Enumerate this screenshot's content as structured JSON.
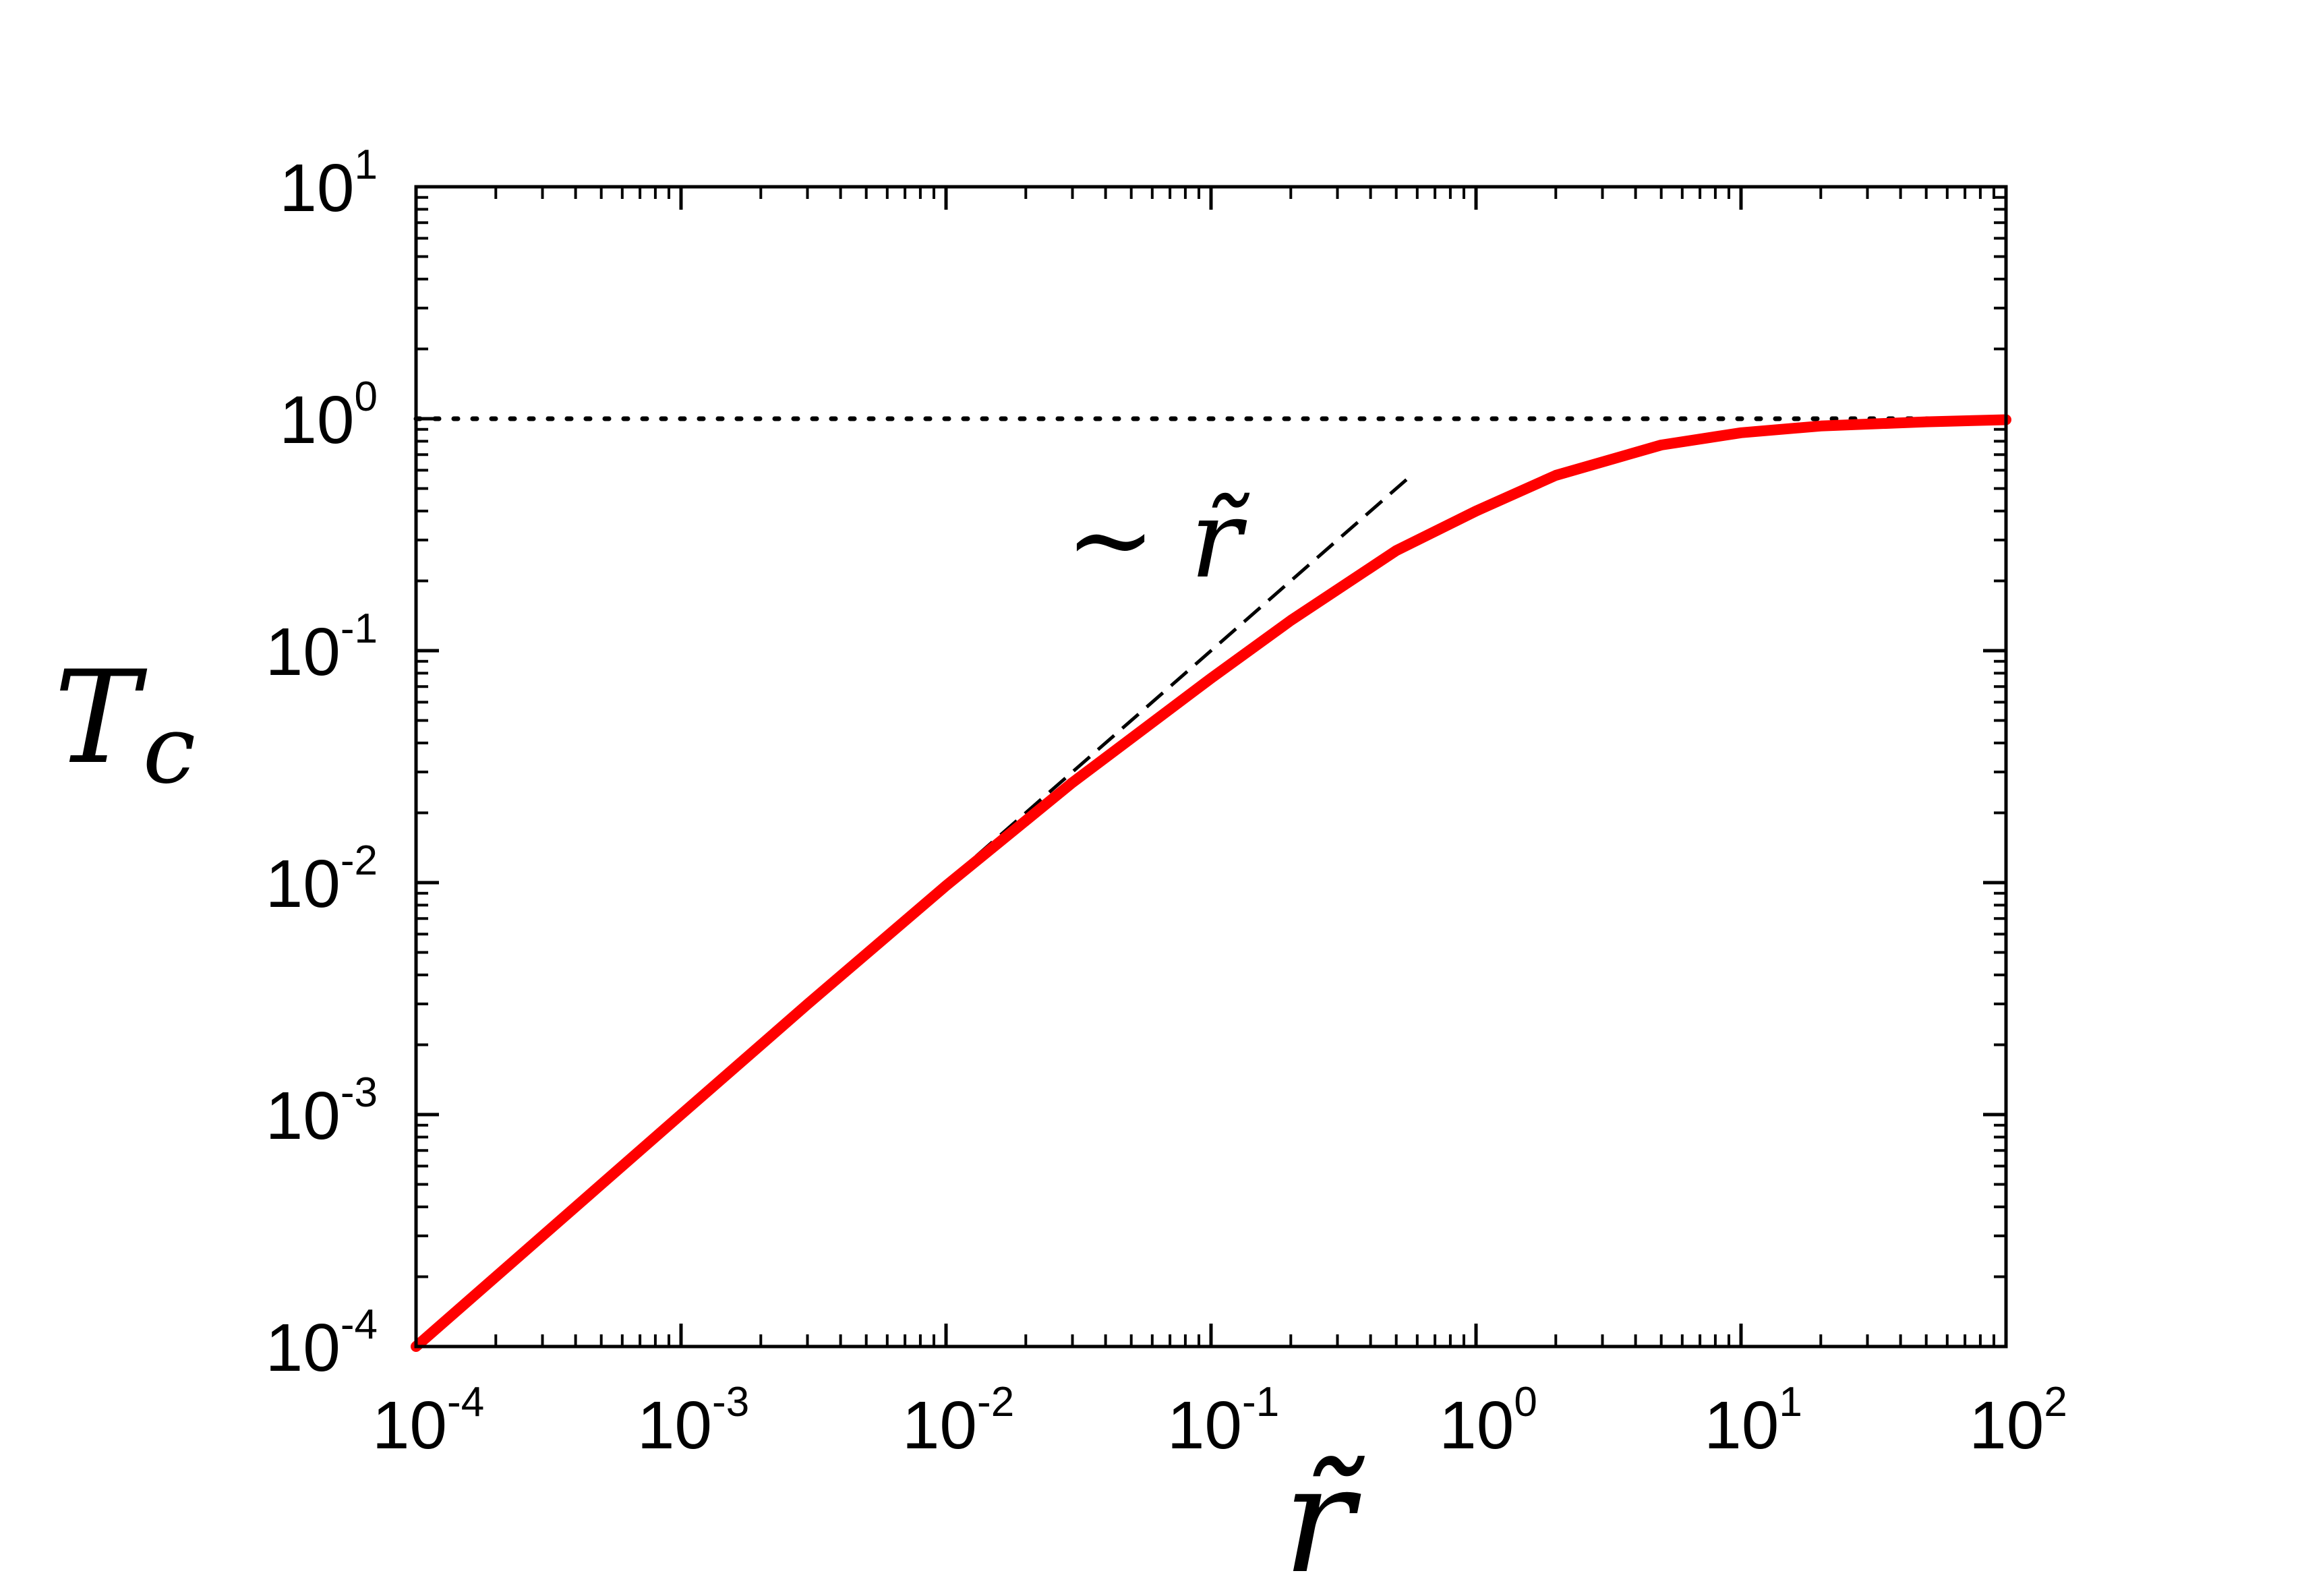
{
  "chart_data": {
    "type": "line",
    "xscale": "log",
    "yscale": "log",
    "xlim": [
      0.0001,
      100
    ],
    "ylim": [
      0.0001,
      10
    ],
    "x_ticks": [
      {
        "base": "10",
        "exp": "-4"
      },
      {
        "base": "10",
        "exp": "-3"
      },
      {
        "base": "10",
        "exp": "-2"
      },
      {
        "base": "10",
        "exp": "-1"
      },
      {
        "base": "10",
        "exp": "0"
      },
      {
        "base": "10",
        "exp": "1"
      },
      {
        "base": "10",
        "exp": "2"
      }
    ],
    "y_ticks": [
      {
        "base": "10",
        "exp": "-4"
      },
      {
        "base": "10",
        "exp": "-3"
      },
      {
        "base": "10",
        "exp": "-2"
      },
      {
        "base": "10",
        "exp": "-1"
      },
      {
        "base": "10",
        "exp": "0"
      },
      {
        "base": "10",
        "exp": "1"
      }
    ],
    "xlabel": "r̃",
    "ylabel": {
      "main": "T",
      "sub": "c"
    },
    "annotation": "∼ r̃",
    "series": [
      {
        "style": "solid-red",
        "color": "#ff0000",
        "x": [
          0.0001,
          0.0003,
          0.001,
          0.003,
          0.01,
          0.03,
          0.1,
          0.2,
          0.5,
          1,
          2,
          5,
          10,
          20,
          50,
          100
        ],
        "y": [
          0.0001,
          0.0003,
          0.001,
          0.00299,
          0.0097,
          0.027,
          0.076,
          0.135,
          0.27,
          0.4,
          0.57,
          0.77,
          0.87,
          0.93,
          0.97,
          0.99
        ]
      },
      {
        "style": "dashed-black",
        "color": "#000000",
        "x": [
          0.0001,
          0.55
        ],
        "y": [
          0.0001,
          0.55
        ]
      },
      {
        "style": "dotted-black",
        "color": "#000000",
        "x": [
          0.0001,
          100
        ],
        "y": [
          1,
          1
        ]
      }
    ]
  }
}
